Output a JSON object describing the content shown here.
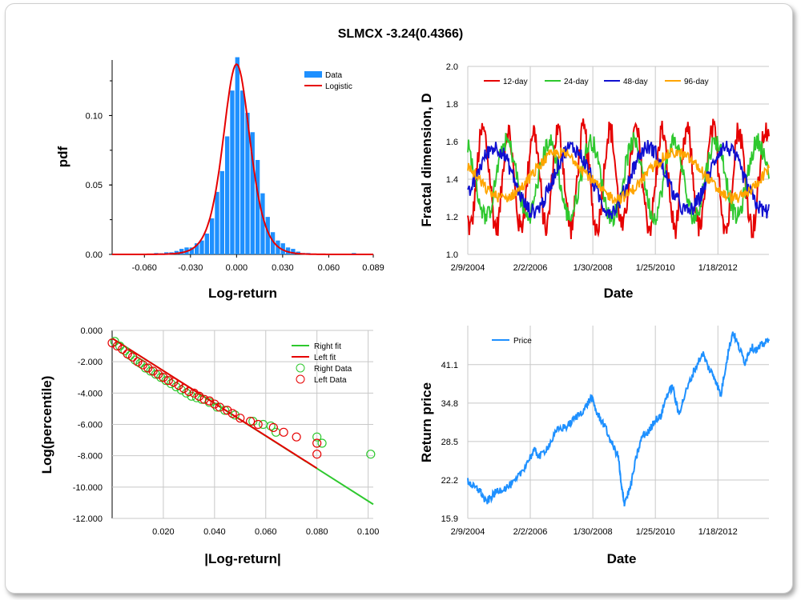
{
  "title": "SLMCX -3.24(0.4366)",
  "colors": {
    "bar": "#1e90ff",
    "logistic": "#e60000",
    "d12": "#e60000",
    "d24": "#2ec82e",
    "d48": "#1010d0",
    "d96": "#ffa500",
    "price": "#1e90ff",
    "rightfit": "#2ec82e",
    "leftfit": "#e60000",
    "grid": "#c8c8c8"
  },
  "chart_data": [
    {
      "type": "bar",
      "xlabel": "Log-return",
      "ylabel": "pdf",
      "xlim": [
        -0.081,
        0.089
      ],
      "ylim": [
        0,
        0.14
      ],
      "xticks": [
        "-0.060",
        "-0.030",
        "0.000",
        "0.030",
        "0.060",
        "0.089"
      ],
      "yticks": [
        "0.00",
        "0.05",
        "0.10"
      ],
      "legend": [
        {
          "name": "Data",
          "kind": "bar"
        },
        {
          "name": "Logistic",
          "kind": "line"
        }
      ],
      "bin_width": 0.0033,
      "bins": [
        [
          -0.0725,
          0.0005
        ],
        [
          -0.0622,
          0.0005
        ],
        [
          -0.0523,
          0.001
        ],
        [
          -0.049,
          0.0008
        ],
        [
          -0.0457,
          0.0015
        ],
        [
          -0.0424,
          0.0015
        ],
        [
          -0.0391,
          0.0025
        ],
        [
          -0.0358,
          0.004
        ],
        [
          -0.0325,
          0.005
        ],
        [
          -0.0292,
          0.005
        ],
        [
          -0.0259,
          0.008
        ],
        [
          -0.0226,
          0.01
        ],
        [
          -0.0193,
          0.015
        ],
        [
          -0.016,
          0.026
        ],
        [
          -0.0127,
          0.045
        ],
        [
          -0.0094,
          0.06
        ],
        [
          -0.0061,
          0.085
        ],
        [
          -0.0028,
          0.118
        ],
        [
          0.0005,
          0.142
        ],
        [
          0.0038,
          0.118
        ],
        [
          0.0071,
          0.102
        ],
        [
          0.0104,
          0.088
        ],
        [
          0.0137,
          0.068
        ],
        [
          0.017,
          0.044
        ],
        [
          0.0203,
          0.027
        ],
        [
          0.0236,
          0.016
        ],
        [
          0.0269,
          0.01
        ],
        [
          0.0302,
          0.008
        ],
        [
          0.0335,
          0.005
        ],
        [
          0.0368,
          0.004
        ],
        [
          0.0401,
          0.002
        ],
        [
          0.0434,
          0.001
        ],
        [
          0.0467,
          0.001
        ],
        [
          0.0533,
          0.0005
        ],
        [
          0.0599,
          0.0005
        ],
        [
          0.0764,
          0.001
        ]
      ],
      "logistic": {
        "mu": 0.0,
        "s": 0.0059,
        "peak": 0.137
      }
    },
    {
      "type": "line",
      "xlabel": "Date",
      "ylabel": "Fractal dimension, D",
      "xlim": [
        "2/9/2004",
        "8/30/2013"
      ],
      "ylim": [
        1.0,
        2.0
      ],
      "xticks": [
        "2/9/2004",
        "2/2/2006",
        "1/30/2008",
        "1/25/2010",
        "1/18/2012"
      ],
      "yticks": [
        "1.0",
        "1.2",
        "1.4",
        "1.6",
        "1.8",
        "2.0"
      ],
      "series": [
        {
          "name": "12-day",
          "period": 0.085,
          "amp": 0.26,
          "center": 1.4
        },
        {
          "name": "24-day",
          "period": 0.14,
          "amp": 0.2,
          "center": 1.4
        },
        {
          "name": "48-day",
          "period": 0.26,
          "amp": 0.17,
          "center": 1.4
        },
        {
          "name": "96-day",
          "period": 0.38,
          "amp": 0.12,
          "center": 1.42
        }
      ]
    },
    {
      "type": "scatter",
      "xlabel": "|Log-return|",
      "ylabel": "Log(percentile)",
      "xlim": [
        0,
        0.102
      ],
      "ylim": [
        -12.0,
        0.0
      ],
      "xticks": [
        "0.020",
        "0.040",
        "0.060",
        "0.080",
        "0.100"
      ],
      "yticks": [
        "0.000",
        "-2.000",
        "-4.000",
        "-6.000",
        "-8.000",
        "-10.000",
        "-12.000"
      ],
      "series": [
        {
          "name": "Right fit",
          "kind": "line",
          "points": [
            [
              0,
              -0.5
            ],
            [
              0.102,
              -11.1
            ]
          ]
        },
        {
          "name": "Left fit",
          "kind": "line",
          "points": [
            [
              0,
              -0.5
            ],
            [
              0.08,
              -8.8
            ]
          ]
        },
        {
          "name": "Right Data",
          "kind": "marker",
          "points": [
            [
              0.001,
              -0.7
            ],
            [
              0.003,
              -1.0
            ],
            [
              0.005,
              -1.3
            ],
            [
              0.007,
              -1.6
            ],
            [
              0.009,
              -1.9
            ],
            [
              0.011,
              -2.1
            ],
            [
              0.013,
              -2.4
            ],
            [
              0.015,
              -2.6
            ],
            [
              0.017,
              -2.8
            ],
            [
              0.019,
              -3.0
            ],
            [
              0.021,
              -3.2
            ],
            [
              0.023,
              -3.4
            ],
            [
              0.025,
              -3.6
            ],
            [
              0.027,
              -3.8
            ],
            [
              0.029,
              -4.0
            ],
            [
              0.031,
              -4.2
            ],
            [
              0.033,
              -4.3
            ],
            [
              0.035,
              -4.4
            ],
            [
              0.038,
              -4.6
            ],
            [
              0.041,
              -4.9
            ],
            [
              0.044,
              -5.1
            ],
            [
              0.048,
              -5.4
            ],
            [
              0.055,
              -5.8
            ],
            [
              0.059,
              -6.0
            ],
            [
              0.062,
              -6.1
            ],
            [
              0.064,
              -6.5
            ],
            [
              0.08,
              -6.8
            ],
            [
              0.082,
              -7.2
            ],
            [
              0.101,
              -7.9
            ]
          ]
        },
        {
          "name": "Left Data",
          "kind": "marker",
          "points": [
            [
              0.0,
              -0.8
            ],
            [
              0.002,
              -1.0
            ],
            [
              0.004,
              -1.2
            ],
            [
              0.006,
              -1.5
            ],
            [
              0.008,
              -1.7
            ],
            [
              0.01,
              -2.0
            ],
            [
              0.012,
              -2.2
            ],
            [
              0.014,
              -2.4
            ],
            [
              0.016,
              -2.6
            ],
            [
              0.018,
              -2.8
            ],
            [
              0.02,
              -3.0
            ],
            [
              0.022,
              -3.2
            ],
            [
              0.024,
              -3.3
            ],
            [
              0.026,
              -3.5
            ],
            [
              0.028,
              -3.7
            ],
            [
              0.03,
              -3.9
            ],
            [
              0.032,
              -4.0
            ],
            [
              0.034,
              -4.2
            ],
            [
              0.036,
              -4.4
            ],
            [
              0.038,
              -4.5
            ],
            [
              0.04,
              -4.7
            ],
            [
              0.042,
              -4.9
            ],
            [
              0.045,
              -5.1
            ],
            [
              0.047,
              -5.3
            ],
            [
              0.05,
              -5.6
            ],
            [
              0.054,
              -5.8
            ],
            [
              0.057,
              -6.0
            ],
            [
              0.063,
              -6.2
            ],
            [
              0.067,
              -6.5
            ],
            [
              0.072,
              -6.8
            ],
            [
              0.08,
              -7.2
            ],
            [
              0.08,
              -7.9
            ]
          ]
        }
      ]
    },
    {
      "type": "line",
      "xlabel": "Date",
      "ylabel": "Return price",
      "xlim": [
        "2/9/2004",
        "8/30/2013"
      ],
      "ylim": [
        15.9,
        47.5
      ],
      "xticks": [
        "2/9/2004",
        "2/2/2006",
        "1/30/2008",
        "1/25/2010",
        "1/18/2012"
      ],
      "yticks": [
        "15.9",
        "22.2",
        "28.5",
        "34.8",
        "41.1"
      ],
      "series": [
        {
          "name": "Price",
          "keypoints": [
            [
              0.0,
              22.0
            ],
            [
              0.02,
              21.0
            ],
            [
              0.04,
              20.5
            ],
            [
              0.06,
              18.5
            ],
            [
              0.08,
              19.5
            ],
            [
              0.1,
              20.5
            ],
            [
              0.13,
              21.0
            ],
            [
              0.16,
              22.0
            ],
            [
              0.19,
              24.5
            ],
            [
              0.22,
              27.0
            ],
            [
              0.24,
              26.0
            ],
            [
              0.27,
              28.0
            ],
            [
              0.3,
              30.5
            ],
            [
              0.33,
              31.0
            ],
            [
              0.36,
              32.5
            ],
            [
              0.39,
              34.0
            ],
            [
              0.41,
              35.8
            ],
            [
              0.43,
              33.0
            ],
            [
              0.45,
              31.5
            ],
            [
              0.48,
              28.0
            ],
            [
              0.5,
              26.0
            ],
            [
              0.51,
              21.0
            ],
            [
              0.52,
              18.5
            ],
            [
              0.54,
              21.0
            ],
            [
              0.56,
              26.0
            ],
            [
              0.58,
              29.5
            ],
            [
              0.6,
              30.0
            ],
            [
              0.62,
              32.0
            ],
            [
              0.64,
              32.5
            ],
            [
              0.66,
              36.0
            ],
            [
              0.68,
              37.5
            ],
            [
              0.7,
              33.0
            ],
            [
              0.72,
              36.0
            ],
            [
              0.75,
              40.0
            ],
            [
              0.78,
              43.0
            ],
            [
              0.8,
              40.5
            ],
            [
              0.82,
              39.0
            ],
            [
              0.84,
              36.0
            ],
            [
              0.86,
              42.0
            ],
            [
              0.88,
              46.5
            ],
            [
              0.9,
              44.0
            ],
            [
              0.92,
              41.5
            ],
            [
              0.94,
              44.0
            ],
            [
              0.96,
              43.5
            ],
            [
              0.98,
              44.5
            ],
            [
              1.0,
              45.0
            ]
          ]
        }
      ]
    }
  ]
}
